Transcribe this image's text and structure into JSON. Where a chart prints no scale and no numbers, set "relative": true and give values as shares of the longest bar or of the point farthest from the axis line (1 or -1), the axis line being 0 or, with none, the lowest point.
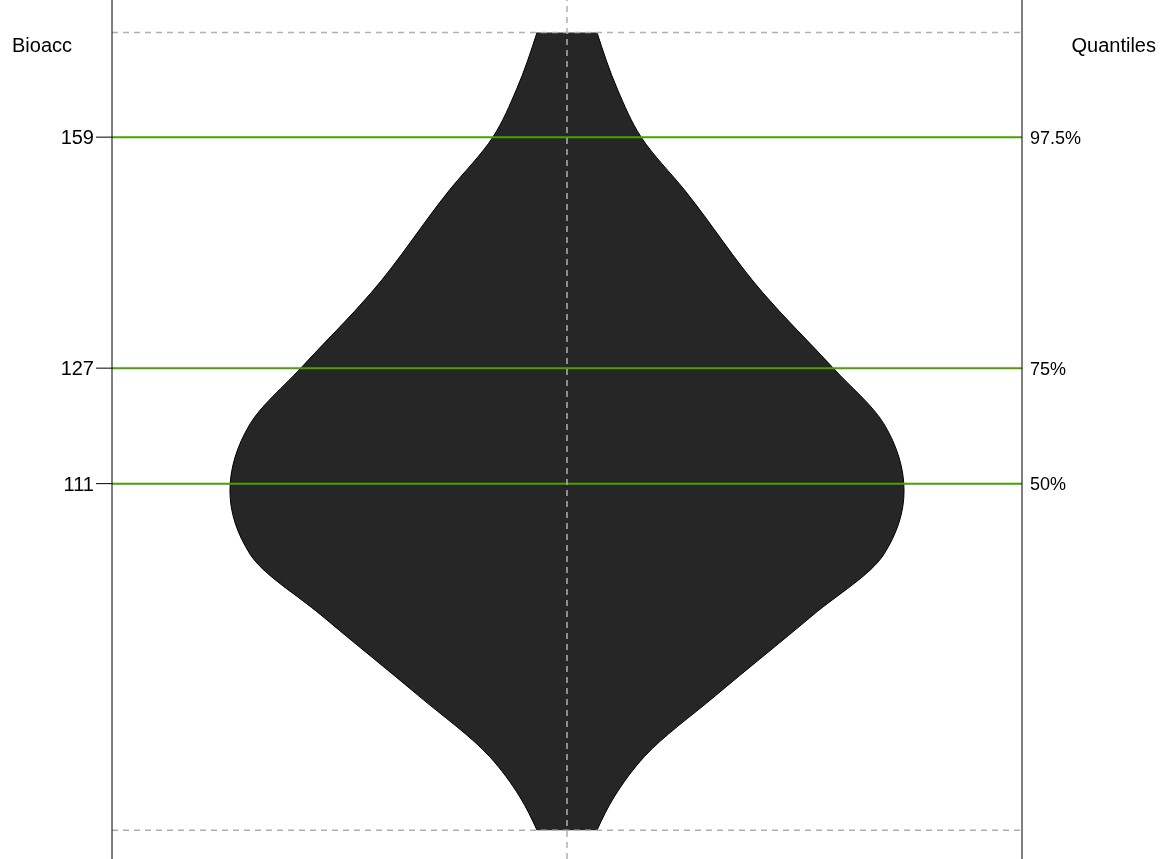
{
  "chart_data": {
    "type": "area",
    "orientation": "horizontal",
    "relative": true,
    "ylabel": "Bioacc",
    "x": [
      63,
      67.6,
      73.2,
      81.6,
      92.8,
      101.2,
      110,
      119.3,
      127,
      137.5,
      151.6,
      159,
      165.6,
      173.5
    ],
    "series": [
      {
        "color": "#262626",
        "values": [
          0.089,
          0.14,
          0.23,
          0.44,
          0.73,
          0.94,
          1,
          0.94,
          0.79,
          0.58,
          0.35,
          0.22,
          0.15,
          0.089
        ]
      }
    ],
    "ylim": [
      59,
      178
    ],
    "yticks": [
      111,
      127,
      159
    ],
    "grid": false,
    "legend": false,
    "annotations": [
      "Quantiles",
      "97.5%",
      "75%",
      "50%"
    ],
    "ref_lines": [
      {
        "axis": "y",
        "value": 159,
        "label": null,
        "color": "#4ca000",
        "line_style": "solid"
      },
      {
        "axis": "y",
        "value": 127,
        "label": null,
        "color": "#4ca000",
        "line_style": "solid"
      },
      {
        "axis": "y",
        "value": 111,
        "label": null,
        "color": "#4ca000",
        "line_style": "solid"
      },
      {
        "axis": "y",
        "value": 173.5,
        "label": null,
        "color": "#b0b0b0",
        "line_style": "dashed"
      },
      {
        "axis": "y",
        "value": 63,
        "label": null,
        "color": "#b0b0b0",
        "line_style": "dashed"
      },
      {
        "axis": "x",
        "value": 0,
        "label": null,
        "color": "#b0b0b0",
        "line_style": "dashed"
      }
    ]
  }
}
